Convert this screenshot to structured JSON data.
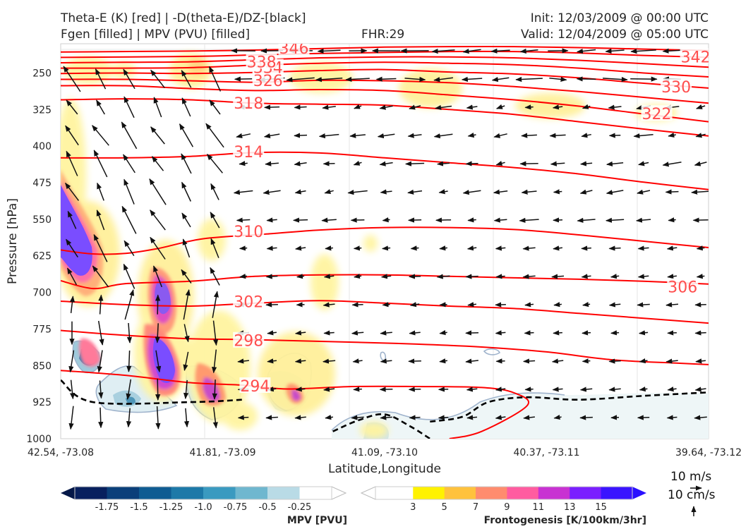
{
  "header": {
    "title_left_1": "Theta-E (K) [red] | -D(theta-E)/DZ-[black]",
    "title_left_2": "Fgen [filled] | MPV (PVU) [filled]",
    "fhr": "FHR:29",
    "init": "Init: 12/03/2009 @ 00:00 UTC",
    "valid": "Valid: 12/04/2009 @ 05:00 UTC"
  },
  "axes": {
    "ylabel": "Pressure [hPa]",
    "xlabel": "Latitude,Longitude"
  },
  "mpv_colorbar": {
    "label": "MPV [PVU]",
    "ticks": [
      "-1.75",
      "-1.5",
      "-1.25",
      "-1.0",
      "-0.75",
      "-0.5",
      "-0.25"
    ]
  },
  "fgen_colorbar": {
    "label": "Frontogenesis [K/100km/3hr]",
    "ticks": [
      "3",
      "5",
      "7",
      "9",
      "11",
      "13",
      "15"
    ]
  },
  "wind_key": {
    "horizontal": "10 m/s",
    "vertical": "10 cm/s"
  },
  "chart_data": {
    "type": "cross-section",
    "x_ticks": [
      "42.54, -73.08",
      "41.81, -73.09",
      "41.09, -73.10",
      "40.37, -73.11",
      "39.64, -73.12"
    ],
    "x_positions": [
      0,
      0.25,
      0.5,
      0.75,
      1.0
    ],
    "y_ticks": [
      250,
      325,
      400,
      475,
      550,
      625,
      700,
      775,
      850,
      925,
      1000
    ],
    "ylim": [
      1000,
      190
    ],
    "theta_e_colors": {
      "line": "#ff0000",
      "label": "#ff4d4d"
    },
    "theta_e_contours": [
      {
        "value": "294",
        "points": [
          [
            0,
            860
          ],
          [
            0.1,
            870
          ],
          [
            0.2,
            885
          ],
          [
            0.28,
            890
          ],
          [
            0.35,
            898
          ],
          [
            0.45,
            893
          ],
          [
            0.55,
            893
          ],
          [
            0.65,
            895
          ],
          [
            0.7,
            906
          ],
          [
            0.72,
            932
          ],
          [
            0.65,
            985
          ],
          [
            0.6,
            1000
          ]
        ]
      },
      {
        "value": "298",
        "points": [
          [
            0,
            778
          ],
          [
            0.1,
            788
          ],
          [
            0.2,
            795
          ],
          [
            0.3,
            797
          ],
          [
            0.45,
            802
          ],
          [
            0.55,
            806
          ],
          [
            0.65,
            812
          ],
          [
            0.75,
            822
          ],
          [
            0.85,
            838
          ],
          [
            0.95,
            845
          ],
          [
            1.0,
            848
          ]
        ]
      },
      {
        "value": "302",
        "points": [
          [
            0,
            718
          ],
          [
            0.1,
            725
          ],
          [
            0.2,
            728
          ],
          [
            0.3,
            722
          ],
          [
            0.4,
            717
          ],
          [
            0.5,
            722
          ],
          [
            0.6,
            728
          ],
          [
            0.7,
            733
          ],
          [
            0.8,
            743
          ],
          [
            0.9,
            753
          ],
          [
            1.0,
            763
          ]
        ]
      },
      {
        "value": "306",
        "points": [
          [
            0,
            676
          ],
          [
            0.05,
            692
          ],
          [
            0.1,
            682
          ],
          [
            0.2,
            677
          ],
          [
            0.3,
            667
          ],
          [
            0.4,
            664
          ],
          [
            0.5,
            664
          ],
          [
            0.6,
            667
          ],
          [
            0.7,
            670
          ],
          [
            0.8,
            673
          ],
          [
            0.9,
            677
          ],
          [
            1.0,
            683
          ]
        ]
      },
      {
        "value": "310",
        "points": [
          [
            0,
            613
          ],
          [
            0.05,
            621
          ],
          [
            0.1,
            620
          ],
          [
            0.15,
            610
          ],
          [
            0.22,
            590
          ],
          [
            0.32,
            580
          ],
          [
            0.4,
            572
          ],
          [
            0.5,
            567
          ],
          [
            0.6,
            567
          ],
          [
            0.7,
            571
          ],
          [
            0.8,
            582
          ],
          [
            0.9,
            595
          ],
          [
            1.0,
            608
          ]
        ]
      },
      {
        "value": "314",
        "points": [
          [
            0,
            424
          ],
          [
            0.1,
            424
          ],
          [
            0.2,
            421
          ],
          [
            0.3,
            413
          ],
          [
            0.4,
            414
          ],
          [
            0.5,
            424
          ],
          [
            0.6,
            434
          ],
          [
            0.7,
            444
          ],
          [
            0.8,
            457
          ],
          [
            0.9,
            474
          ],
          [
            1.0,
            489
          ]
        ]
      },
      {
        "value": "318",
        "points": [
          [
            0,
            305
          ],
          [
            0.1,
            303
          ],
          [
            0.2,
            305
          ],
          [
            0.3,
            312
          ],
          [
            0.4,
            314
          ],
          [
            0.5,
            316
          ],
          [
            0.6,
            325
          ],
          [
            0.7,
            335
          ],
          [
            0.8,
            350
          ],
          [
            0.9,
            365
          ],
          [
            1.0,
            379
          ]
        ]
      },
      {
        "value": "322",
        "points": [
          [
            0,
            276
          ],
          [
            0.1,
            276
          ],
          [
            0.2,
            282
          ],
          [
            0.3,
            286
          ],
          [
            0.4,
            284
          ],
          [
            0.5,
            286
          ],
          [
            0.6,
            295
          ],
          [
            0.7,
            305
          ],
          [
            0.8,
            318
          ],
          [
            0.9,
            334
          ],
          [
            1.0,
            350
          ]
        ]
      },
      {
        "value": "326",
        "points": [
          [
            0,
            263
          ],
          [
            0.1,
            263
          ],
          [
            0.2,
            266
          ],
          [
            0.3,
            269
          ],
          [
            0.4,
            265
          ],
          [
            0.5,
            266
          ],
          [
            0.6,
            270
          ],
          [
            0.7,
            278
          ],
          [
            0.8,
            288
          ],
          [
            0.9,
            300
          ],
          [
            1.0,
            312
          ]
        ]
      },
      {
        "value": "330",
        "points": [
          [
            0,
            251
          ],
          [
            0.1,
            250
          ],
          [
            0.2,
            251
          ],
          [
            0.3,
            249
          ],
          [
            0.4,
            245
          ],
          [
            0.5,
            243
          ],
          [
            0.6,
            248
          ],
          [
            0.7,
            252
          ],
          [
            0.8,
            260
          ],
          [
            0.9,
            271
          ],
          [
            1.0,
            281
          ]
        ]
      },
      {
        "value": "334",
        "points": [
          [
            0,
            240
          ],
          [
            0.1,
            240
          ],
          [
            0.2,
            239
          ],
          [
            0.3,
            234
          ],
          [
            0.4,
            230
          ],
          [
            0.5,
            228
          ],
          [
            0.6,
            230
          ],
          [
            0.7,
            233
          ],
          [
            0.8,
            240
          ],
          [
            0.9,
            250
          ],
          [
            1.0,
            258
          ]
        ]
      },
      {
        "value": "338",
        "points": [
          [
            0,
            229
          ],
          [
            0.1,
            228
          ],
          [
            0.2,
            227
          ],
          [
            0.3,
            223
          ],
          [
            0.4,
            219
          ],
          [
            0.5,
            217
          ],
          [
            0.6,
            217
          ],
          [
            0.7,
            219
          ],
          [
            0.8,
            224
          ],
          [
            0.9,
            231
          ],
          [
            1.0,
            238
          ]
        ]
      },
      {
        "value": "342",
        "points": [
          [
            0,
            218
          ],
          [
            0.2,
            216
          ],
          [
            0.3,
            213
          ],
          [
            0.4,
            210
          ],
          [
            0.5,
            208
          ],
          [
            0.6,
            206
          ],
          [
            0.7,
            206
          ],
          [
            0.8,
            209
          ],
          [
            0.9,
            214
          ],
          [
            1.0,
            218
          ]
        ]
      },
      {
        "value": "346",
        "points": [
          [
            0,
            207
          ],
          [
            0.2,
            205
          ],
          [
            0.3,
            203
          ],
          [
            0.4,
            200
          ],
          [
            0.5,
            197
          ],
          [
            0.6,
            196
          ],
          [
            0.7,
            196
          ],
          [
            0.8,
            198
          ],
          [
            0.9,
            201
          ],
          [
            1.0,
            204
          ]
        ]
      }
    ],
    "labeled_contours": [
      {
        "text": "294",
        "x": 0.3,
        "p": 893
      },
      {
        "text": "298",
        "x": 0.29,
        "p": 800
      },
      {
        "text": "302",
        "x": 0.29,
        "p": 720
      },
      {
        "text": "310",
        "x": 0.29,
        "p": 576
      },
      {
        "text": "306",
        "x": 0.96,
        "p": 690
      },
      {
        "text": "314",
        "x": 0.29,
        "p": 413
      },
      {
        "text": "318",
        "x": 0.29,
        "p": 313
      },
      {
        "text": "322",
        "x": 0.92,
        "p": 335
      },
      {
        "text": "326",
        "x": 0.32,
        "p": 267
      },
      {
        "text": "330",
        "x": 0.95,
        "p": 280
      },
      {
        "text": "334",
        "x": 0.32,
        "p": 240
      },
      {
        "text": "338",
        "x": 0.31,
        "p": 228
      },
      {
        "text": "342",
        "x": 0.98,
        "p": 218
      },
      {
        "text": "346",
        "x": 0.36,
        "p": 200
      }
    ],
    "stability_contour_dashed": [
      [
        [
          0,
          880
        ],
        [
          0.05,
          925
        ],
        [
          0.2,
          925
        ],
        [
          0.28,
          920
        ]
      ],
      [
        [
          0.42,
          985
        ],
        [
          0.46,
          962
        ],
        [
          0.5,
          950
        ],
        [
          0.54,
          975
        ],
        [
          0.57,
          1000
        ]
      ],
      [
        [
          0.57,
          965
        ],
        [
          0.62,
          955
        ],
        [
          0.66,
          925
        ],
        [
          0.72,
          915
        ],
        [
          0.8,
          920
        ],
        [
          0.9,
          912
        ],
        [
          1.0,
          905
        ]
      ]
    ],
    "fgen_levels": [
      3,
      5,
      7,
      9,
      11,
      13,
      15
    ],
    "fgen_colors": [
      "#fff200",
      "#ffc23d",
      "#ff8c6e",
      "#ff5ca0",
      "#c832d2",
      "#7a1fff",
      "#3a14ff"
    ],
    "mpv_levels": [
      -1.75,
      -1.5,
      -1.25,
      -1.0,
      -0.75,
      -0.5,
      -0.25
    ],
    "mpv_colors": [
      "#08205e",
      "#0b3f7a",
      "#0f5c92",
      "#1d79a8",
      "#3a9ac0",
      "#6fb7cf",
      "#b9dbe6"
    ]
  }
}
